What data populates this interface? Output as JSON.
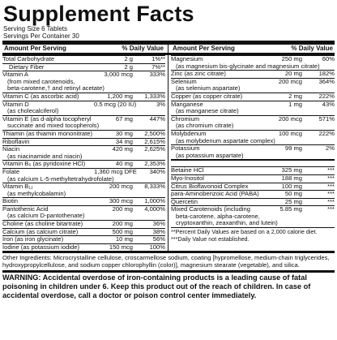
{
  "title": "Supplement Facts",
  "serving_size": "Serving Size 6 Tablets",
  "servings_per_container": "Servings Per Container 30",
  "header": {
    "amount": "Amount Per Serving",
    "dv": "% Daily Value"
  },
  "left": [
    {
      "n": "Total Carbohydrate",
      "a": "2 g",
      "d": "1%**"
    },
    {
      "n": "Dietary Fiber",
      "a": "2 g",
      "d": "7%**",
      "sub": true
    },
    {
      "n": "Vitamin A",
      "a": "3,000 mcg",
      "d": "333%"
    },
    {
      "cont": "(from mixed carotenoids,"
    },
    {
      "cont": "beta-carotene,† and retinyl acetate)"
    },
    {
      "n": "Vitamin C (as ascorbic acid)",
      "a": "1,200 mg",
      "d": "1,333%"
    },
    {
      "n": "Vitamin D",
      "a": "0.5 mcg (20 IU)",
      "d": "3%"
    },
    {
      "cont": "(as cholecalciferol)"
    },
    {
      "n": "Vitamin E (as d-alpha tocopheryl",
      "a": "67 mg",
      "d": "447%"
    },
    {
      "cont": "succinate and mixed tocopherols)"
    },
    {
      "n": "Thiamin (as thiamin mononitrate)",
      "a": "30 mg",
      "d": "2,500%"
    },
    {
      "n": "Riboflavin",
      "a": "34 mg",
      "d": "2,615%"
    },
    {
      "n": "Niacin",
      "a": "420 mg",
      "d": "2,625%"
    },
    {
      "cont": "(as niacinamide and niacin)"
    },
    {
      "n": "Vitamin B₆ (as pyridoxine HCl)",
      "a": "40 mg",
      "d": "2,353%"
    },
    {
      "n": "Folate",
      "a": "1,360 mcg DFE",
      "d": "340%"
    },
    {
      "cont": "(as calcium L-5-methyltetrahydrofolate)"
    },
    {
      "n": "Vitamin B₁₂",
      "a": "200 mcg",
      "d": "8,333%"
    },
    {
      "cont": "(as methylcobalamin)"
    },
    {
      "n": "Biotin",
      "a": "300 mcg",
      "d": "1,000%"
    },
    {
      "n": "Pantothenic Acid",
      "a": "200 mg",
      "d": "4,000%"
    },
    {
      "cont": "(as calcium D-pantothenate)"
    },
    {
      "n": "Choline (as choline bitartrate)",
      "a": "200 mg",
      "d": "36%"
    },
    {
      "n": "Calcium (as calcium citrate)",
      "a": "500 mg",
      "d": "38%"
    },
    {
      "n": "Iron (as iron glycinate)",
      "a": "10 mg",
      "d": "56%"
    },
    {
      "n": "Iodine (as potassium iodide)",
      "a": "150 mcg",
      "d": "100%"
    }
  ],
  "right_top": [
    {
      "n": "Magnesium",
      "a": "250 mg",
      "d": "60%"
    },
    {
      "cont": "(as magnesium bis-glycinate and magnesium citrate)"
    },
    {
      "n": "Zinc (as zinc citrate)",
      "a": "20 mg",
      "d": "182%"
    },
    {
      "n": "Selenium",
      "a": "200 mcg",
      "d": "364%"
    },
    {
      "cont": "(as selenium aspartate)"
    },
    {
      "n": "Copper (as copper citrate)",
      "a": "2 mg",
      "d": "222%"
    },
    {
      "n": "Manganese",
      "a": "1 mg",
      "d": "43%"
    },
    {
      "cont": "(as manganese citrate)"
    },
    {
      "n": "Chromium",
      "a": "200 mcg",
      "d": "571%"
    },
    {
      "cont": "(as chromium citrate)"
    },
    {
      "n": "Molybdenum",
      "a": "100 mcg",
      "d": "222%"
    },
    {
      "cont": "(as molybdenum aspartate complex)"
    },
    {
      "n": "Potassium",
      "a": "99 mg",
      "d": "2%"
    },
    {
      "cont": "(as potassium aspartate)"
    }
  ],
  "right_bottom": [
    {
      "n": "Betaine HCl",
      "a": "325 mg",
      "d": "***"
    },
    {
      "n": "Myo-Inositol",
      "a": "188 mg",
      "d": "***"
    },
    {
      "n": "Citrus Bioflavonoid Complex",
      "a": "100 mg",
      "d": "***"
    },
    {
      "n": "para-Aminobenzoic Acid (PABA)",
      "a": "50 mg",
      "d": "***"
    },
    {
      "n": "Quercetin",
      "a": "25 mg",
      "d": "***"
    },
    {
      "n": "Mixed Carotenoids (including",
      "a": "5.85 mg",
      "d": "***"
    },
    {
      "cont": "beta-carotene, alpha-carotene,"
    },
    {
      "cont": "cryptoxanthin, zeaxanthin, and lutein)"
    }
  ],
  "footnotes": [
    "**Percent Daily Values are based on a 2,000 calorie diet.",
    "***Daily Value not established."
  ],
  "other_ingredients": "Other Ingredients: Microcrystalline cellulose, croscarmellose sodium, coating [hypromellose, medium-chain triglycerides, hydroxypropylcellulose, and sodium copper chlorophyllin (color)], magnesium stearate (vegetable), and silica.",
  "warning": "WARNING: Accidental overdose of iron-containing products is a leading cause of fatal poisoning in children under 6. Keep this product out of the reach of children. In case of accidental overdose, call a doctor or poison control center immediately."
}
